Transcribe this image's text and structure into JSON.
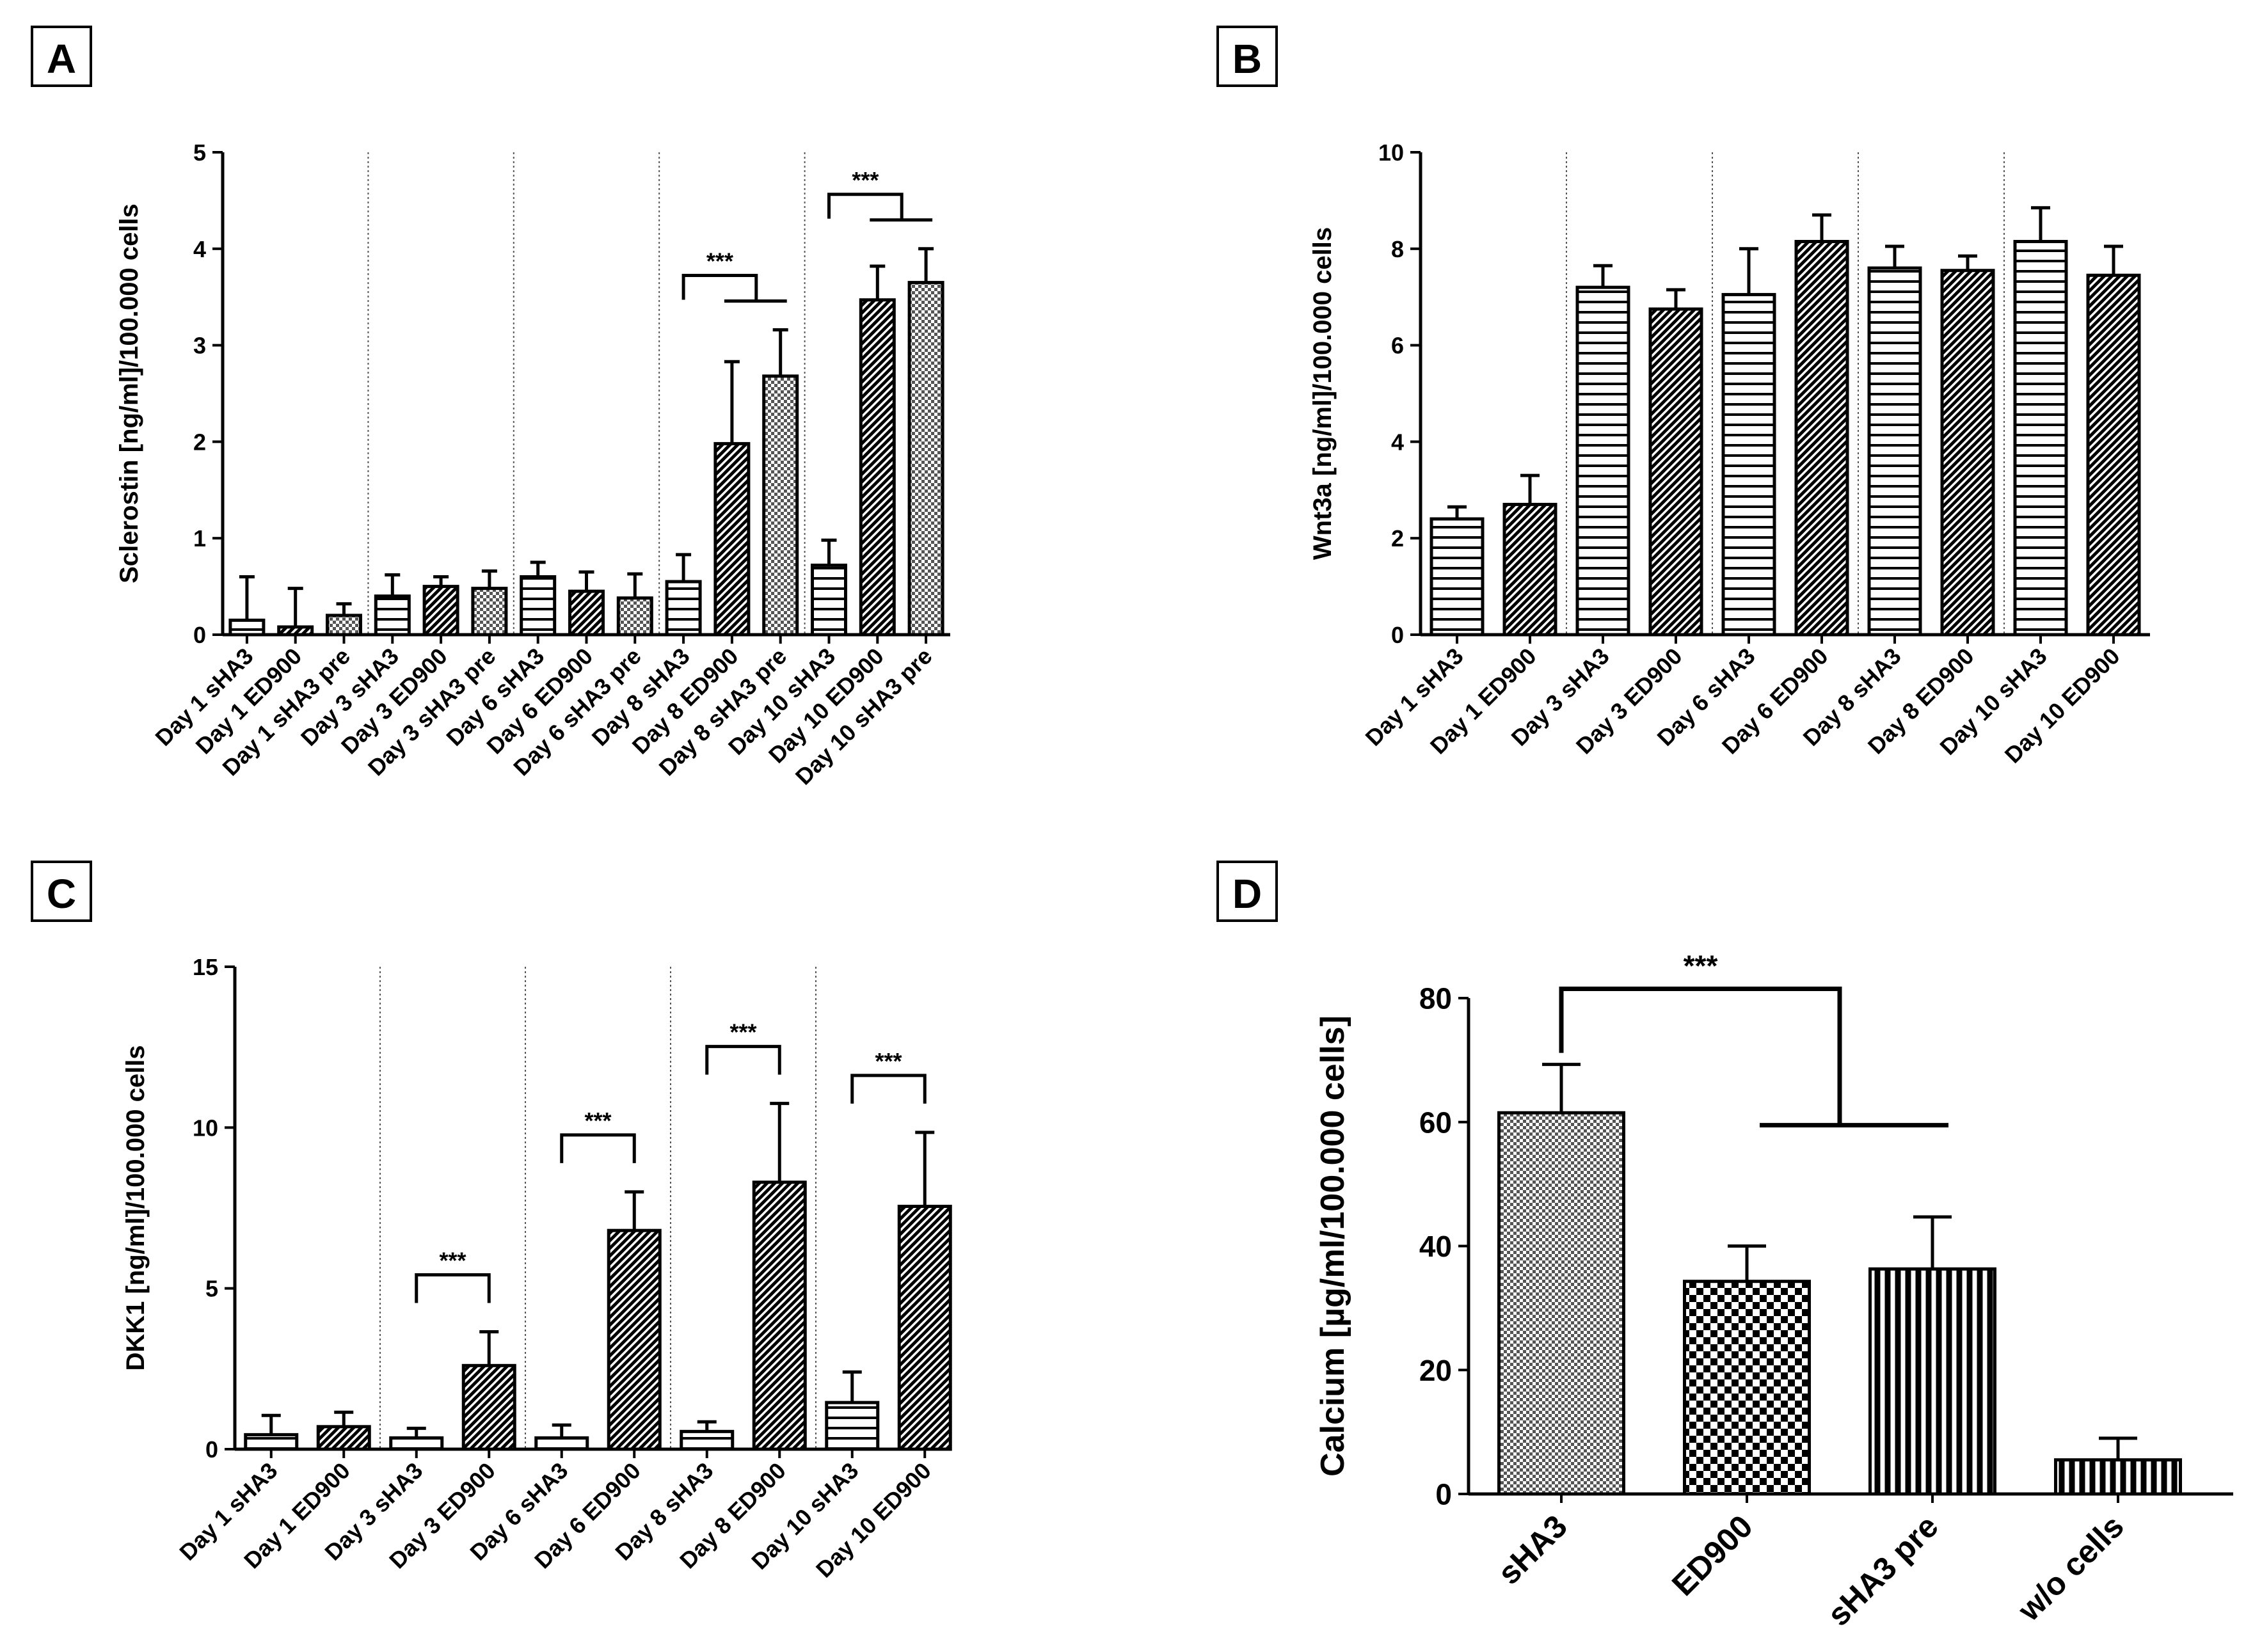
{
  "chart_data": [
    {
      "panel": "A",
      "type": "bar",
      "title": "",
      "xlabel": "",
      "ylabel": "Sclerostin [ng/ml]/100.000 cells",
      "ylim": [
        0,
        5
      ],
      "yticks": [
        0,
        1,
        2,
        3,
        4,
        5
      ],
      "categories": [
        "Day 1 sHA3",
        "Day 1 ED900",
        "Day 1 sHA3 pre",
        "Day 3 sHA3",
        "Day 3 ED900",
        "Day 3 sHA3 pre",
        "Day 6 sHA3",
        "Day 6 ED900",
        "Day 6 sHA3 pre",
        "Day 8 sHA3",
        "Day 8 ED900",
        "Day 8 sHA3 pre",
        "Day 10 sHA3",
        "Day 10 ED900",
        "Day 10 sHA3 pre"
      ],
      "values": [
        0.15,
        0.08,
        0.2,
        0.4,
        0.5,
        0.48,
        0.6,
        0.45,
        0.38,
        0.55,
        1.98,
        2.68,
        0.72,
        3.47,
        3.65
      ],
      "errors": [
        0.45,
        0.4,
        0.12,
        0.22,
        0.1,
        0.18,
        0.15,
        0.2,
        0.25,
        0.28,
        0.85,
        0.48,
        0.26,
        0.35,
        0.35
      ],
      "patterns": [
        "hlines",
        "diag",
        "dots",
        "hlines",
        "diag",
        "dots",
        "hlines",
        "diag",
        "dots",
        "hlines",
        "diag",
        "dots",
        "hlines",
        "diag",
        "dots"
      ],
      "group_size": 3,
      "significance": [
        {
          "label": "***",
          "ref": 9,
          "targets": [
            10,
            11
          ]
        },
        {
          "label": "***",
          "ref": 12,
          "targets": [
            13,
            14
          ]
        }
      ]
    },
    {
      "panel": "B",
      "type": "bar",
      "title": "",
      "xlabel": "",
      "ylabel": "Wnt3a [ng/ml]/100.000 cells",
      "ylim": [
        0,
        10
      ],
      "yticks": [
        0,
        2,
        4,
        6,
        8,
        10
      ],
      "categories": [
        "Day 1 sHA3",
        "Day 1 ED900",
        "Day 3 sHA3",
        "Day 3 ED900",
        "Day 6 sHA3",
        "Day 6 ED900",
        "Day 8 sHA3",
        "Day 8 ED900",
        "Day 10 sHA3",
        "Day 10 ED900"
      ],
      "values": [
        2.4,
        2.7,
        7.2,
        6.75,
        7.05,
        8.15,
        7.6,
        7.55,
        8.15,
        7.45
      ],
      "errors": [
        0.25,
        0.6,
        0.45,
        0.4,
        0.95,
        0.55,
        0.45,
        0.3,
        0.7,
        0.6
      ],
      "patterns": [
        "hlines",
        "diag",
        "hlines",
        "diag",
        "hlines",
        "diag",
        "hlines",
        "diag",
        "hlines",
        "diag"
      ],
      "group_size": 2,
      "significance": []
    },
    {
      "panel": "C",
      "type": "bar",
      "title": "",
      "xlabel": "",
      "ylabel": "DKK1 [ng/ml]/100.000 cells",
      "ylim": [
        0,
        15
      ],
      "yticks": [
        0,
        5,
        10,
        15
      ],
      "categories": [
        "Day 1 sHA3",
        "Day 1 ED900",
        "Day 3 sHA3",
        "Day 3 ED900",
        "Day 6 sHA3",
        "Day 6 ED900",
        "Day 8 sHA3",
        "Day 8 ED900",
        "Day 10 sHA3",
        "Day 10 ED900"
      ],
      "values": [
        0.45,
        0.7,
        0.35,
        2.6,
        0.35,
        6.8,
        0.55,
        8.3,
        1.45,
        7.55
      ],
      "errors": [
        0.6,
        0.45,
        0.3,
        1.05,
        0.4,
        1.2,
        0.3,
        2.45,
        0.95,
        2.3
      ],
      "patterns": [
        "hlines",
        "diag",
        "hlines",
        "diag",
        "hlines",
        "diag",
        "hlines",
        "diag",
        "hlines",
        "diag"
      ],
      "group_size": 2,
      "significance": [
        {
          "label": "***",
          "ref": 2,
          "targets": [
            3
          ]
        },
        {
          "label": "***",
          "ref": 4,
          "targets": [
            5
          ]
        },
        {
          "label": "***",
          "ref": 6,
          "targets": [
            7
          ]
        },
        {
          "label": "***",
          "ref": 8,
          "targets": [
            9
          ]
        }
      ]
    },
    {
      "panel": "D",
      "type": "bar",
      "title": "",
      "xlabel": "",
      "ylabel": "Calcium [µg/ml/100.000 cells]",
      "ylim": [
        0,
        80
      ],
      "yticks": [
        0,
        20,
        40,
        60,
        80
      ],
      "categories": [
        "sHA3",
        "ED900",
        "sHA3 pre",
        "w/o cells"
      ],
      "values": [
        61.5,
        34.3,
        36.3,
        5.5
      ],
      "errors": [
        7.8,
        5.7,
        8.4,
        3.5
      ],
      "patterns": [
        "dots",
        "checker",
        "vlines",
        "vlines"
      ],
      "group_size": 0,
      "significance": [
        {
          "label": "***",
          "ref": 0,
          "targets": [
            1,
            2
          ]
        }
      ]
    }
  ]
}
